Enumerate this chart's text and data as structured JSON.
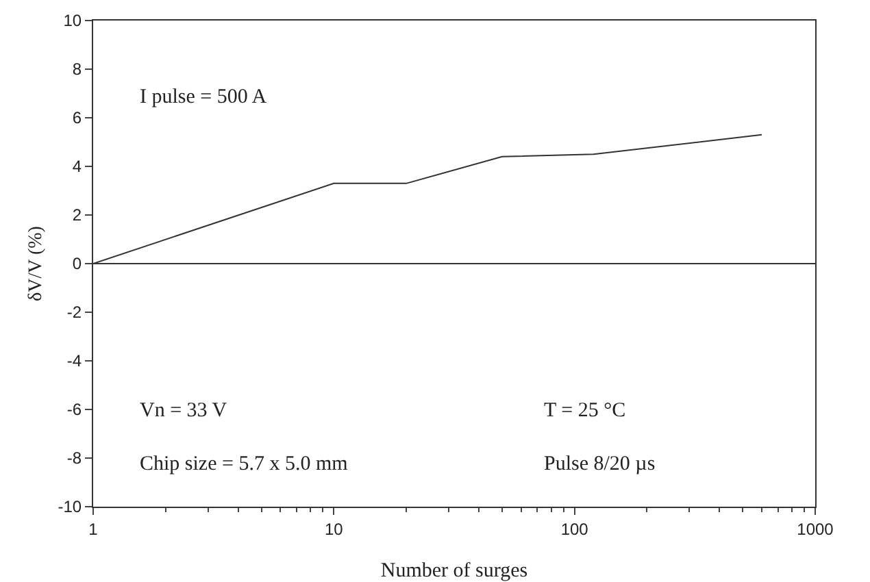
{
  "chart_data": {
    "type": "line",
    "xlabel": "Number of surges",
    "ylabel": "δV/V (%)",
    "x": [
      1,
      10,
      20,
      50,
      120,
      600
    ],
    "series": [
      {
        "color": "#333333",
        "values": [
          0,
          3.3,
          3.3,
          4.4,
          4.5,
          5.3
        ]
      }
    ],
    "log": "x",
    "xlim": [
      1,
      1000
    ],
    "xticks": [
      1,
      10,
      100,
      1000
    ],
    "ylim": [
      -10,
      10
    ],
    "yticks": [
      -10,
      -8,
      -6,
      -4,
      -2,
      0,
      2,
      4,
      6,
      8,
      10
    ],
    "ref_lines": [
      {
        "axis": "y",
        "value": 0,
        "color": "#333333"
      }
    ],
    "marker": "none",
    "line_style": "solid",
    "grid": false,
    "legend": false,
    "annotations": [
      "I pulse = 500 A",
      "Vn = 33 V",
      "Chip size = 5.7 x 5.0 mm",
      "T = 25 °C",
      "Pulse 8/20 µs"
    ]
  }
}
